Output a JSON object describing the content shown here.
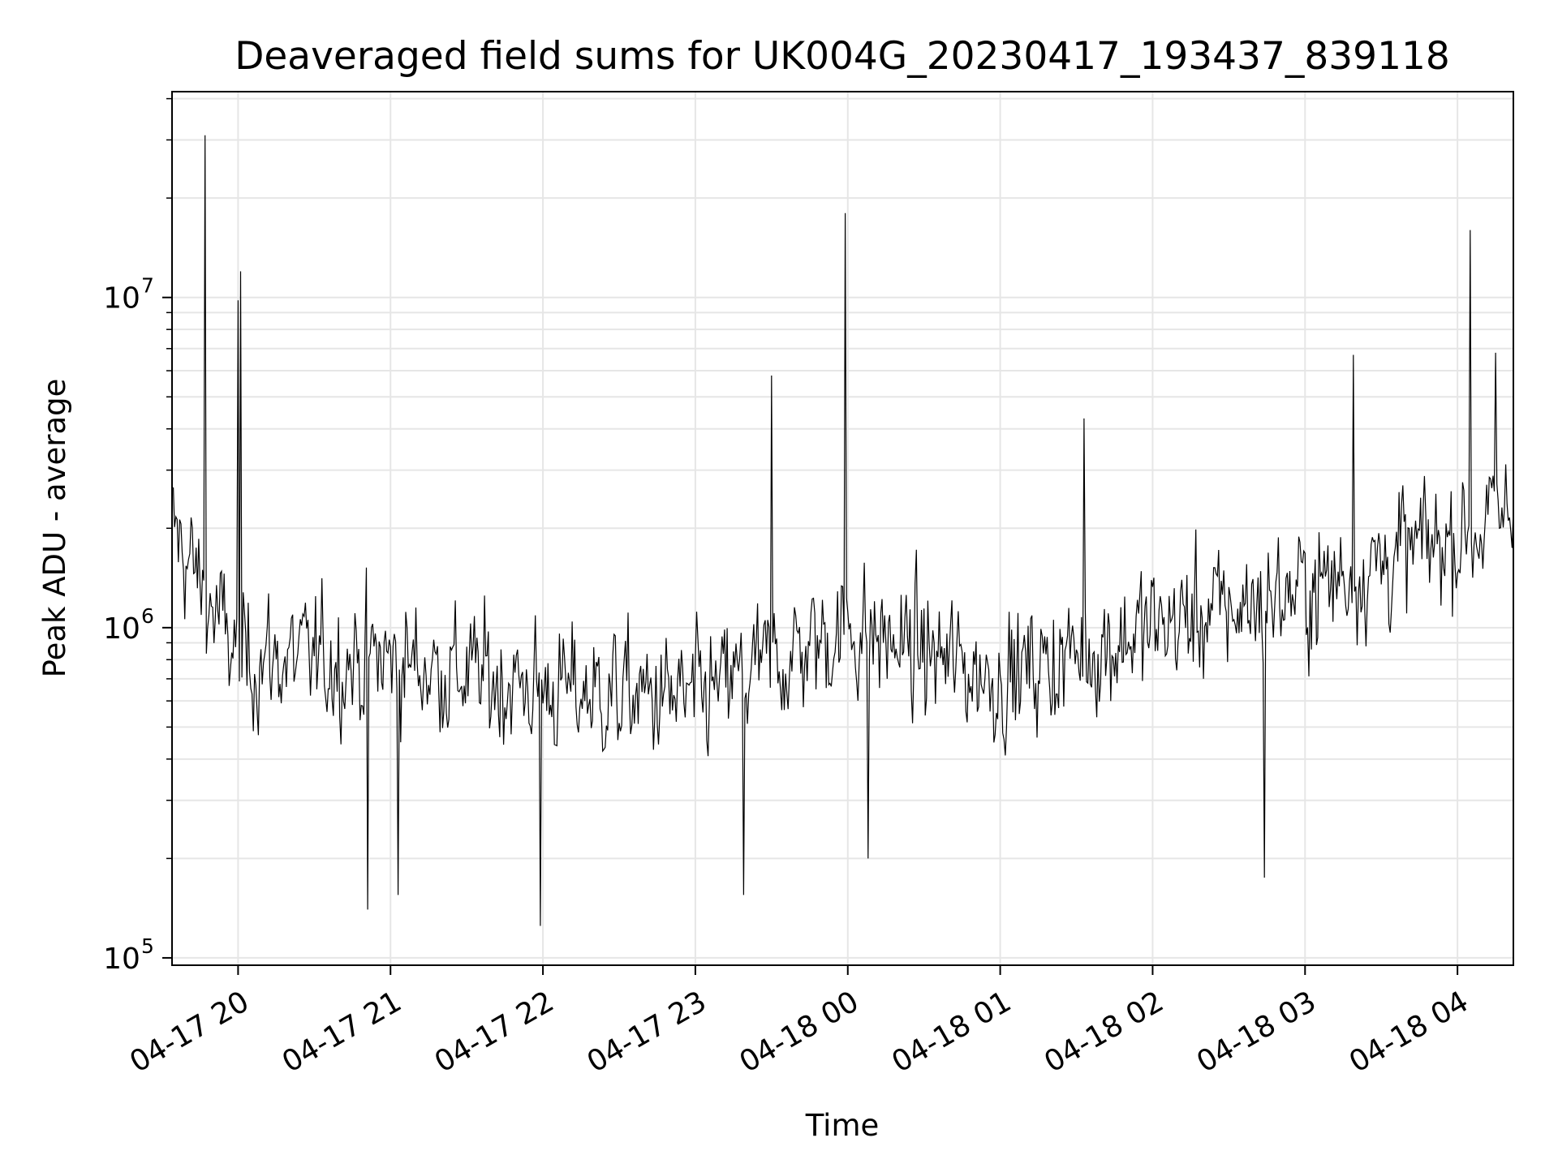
{
  "chart_data": {
    "type": "line",
    "title": "Deaveraged field sums for UK004G_20230417_193437_839118",
    "xlabel": "Time",
    "ylabel": "Peak ADU - average",
    "yscale": "log",
    "grid": true,
    "x_range": [
      "2023-04-17 19:34",
      "2023-04-18 04:22"
    ],
    "ylim": [
      95000,
      42000000
    ],
    "x_ticks": [
      "04-17 20",
      "04-17 21",
      "04-17 22",
      "04-17 23",
      "04-18 00",
      "04-18 01",
      "04-18 02",
      "04-18 03",
      "04-18 04"
    ],
    "y_ticks": [
      {
        "base": "10",
        "exp": "5",
        "value": 100000
      },
      {
        "base": "10",
        "exp": "6",
        "value": 1000000
      },
      {
        "base": "10",
        "exp": "7",
        "value": 10000000
      }
    ],
    "line_color": "#000000",
    "grid_color": "#e6e6e6",
    "series": [
      {
        "x_hours_after": "2023-04-17 19:34",
        "sampling_minutes": 0.5,
        "baseline": [
          {
            "t": "2023-04-17 19:34",
            "value": 2000000
          },
          {
            "t": "2023-04-17 20:00",
            "value": 800000
          },
          {
            "t": "2023-04-17 21:00",
            "value": 800000
          },
          {
            "t": "2023-04-17 22:00",
            "value": 650000
          },
          {
            "t": "2023-04-17 23:00",
            "value": 600000
          },
          {
            "t": "2023-04-18 00:00",
            "value": 1000000
          },
          {
            "t": "2023-04-18 01:00",
            "value": 700000
          },
          {
            "t": "2023-04-18 02:00",
            "value": 1000000
          },
          {
            "t": "2023-04-18 03:00",
            "value": 1300000
          },
          {
            "t": "2023-04-18 04:22",
            "value": 2200000
          }
        ],
        "peaks": [
          {
            "t": "2023-04-17 19:47",
            "value": 31000000
          },
          {
            "t": "2023-04-17 20:01",
            "value": 12000000
          },
          {
            "t": "2023-04-17 20:00",
            "value": 9800000
          },
          {
            "t": "2023-04-17 23:30",
            "value": 5800000
          },
          {
            "t": "2023-04-17 23:59",
            "value": 18000000
          },
          {
            "t": "2023-04-18 01:33",
            "value": 4300000
          },
          {
            "t": "2023-04-18 03:19",
            "value": 6700000
          },
          {
            "t": "2023-04-18 04:05",
            "value": 16000000
          },
          {
            "t": "2023-04-18 04:15",
            "value": 6800000
          }
        ],
        "dips": [
          {
            "t": "2023-04-17 20:51",
            "value": 140000
          },
          {
            "t": "2023-04-17 21:03",
            "value": 155000
          },
          {
            "t": "2023-04-17 21:59",
            "value": 125000
          },
          {
            "t": "2023-04-17 23:19",
            "value": 155000
          },
          {
            "t": "2023-04-18 00:08",
            "value": 200000
          },
          {
            "t": "2023-04-18 02:44",
            "value": 175000
          }
        ]
      }
    ]
  }
}
